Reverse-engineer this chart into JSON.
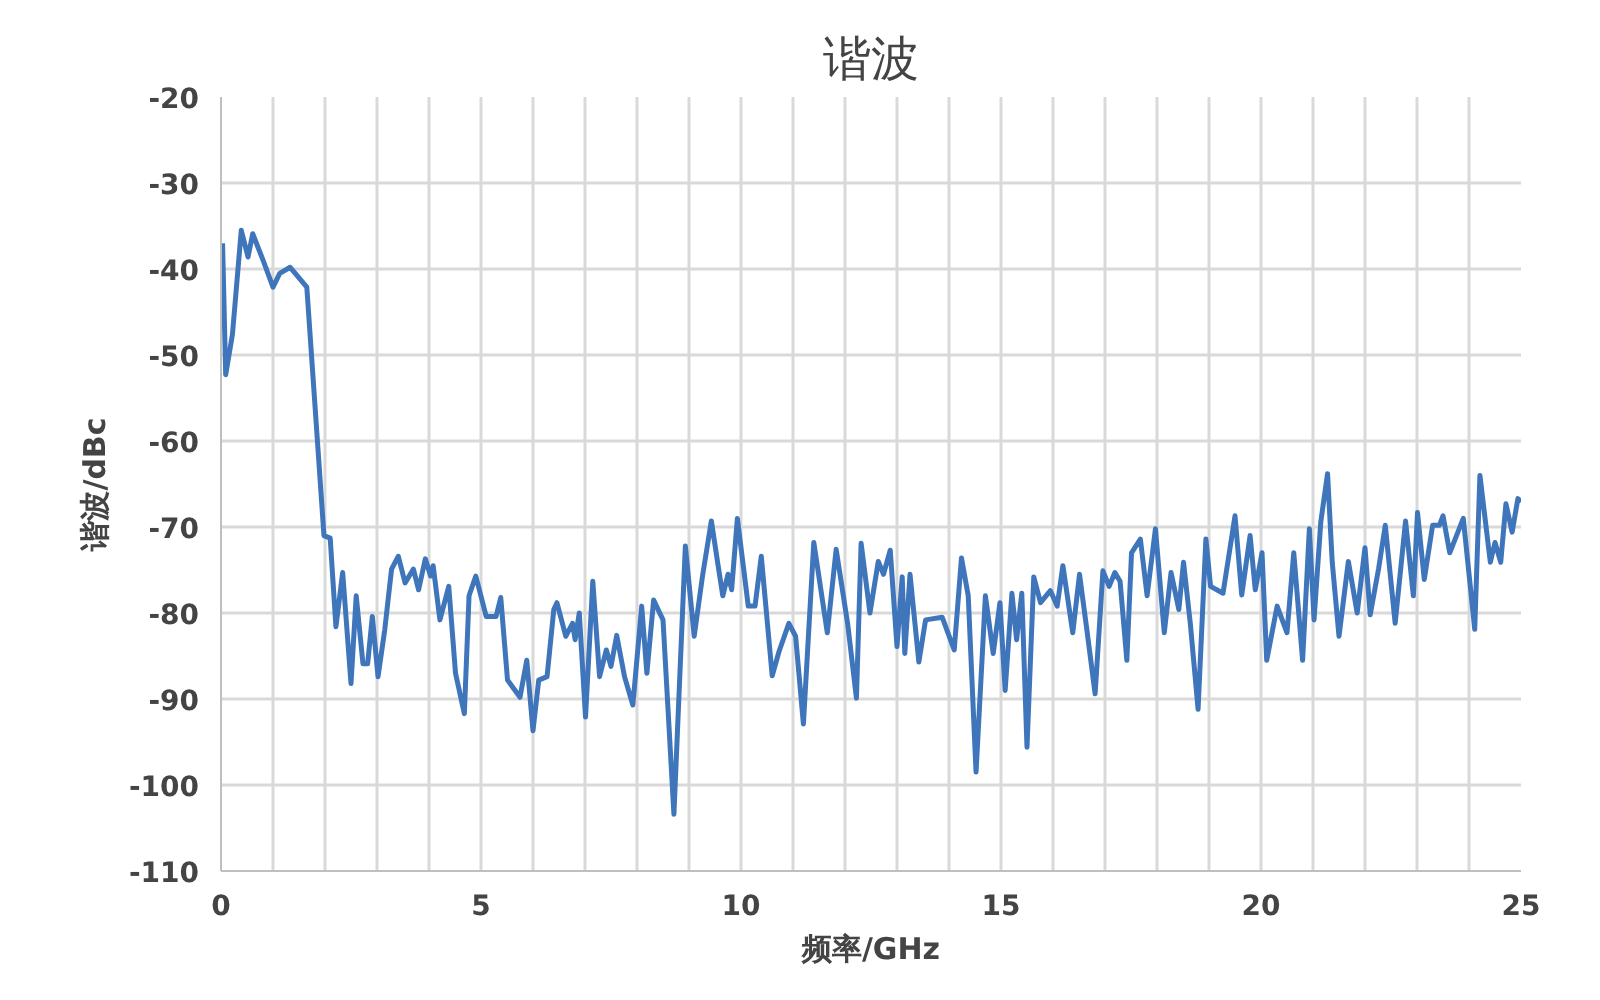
{
  "chart_data": {
    "type": "line",
    "title": "谐波",
    "xlabel": "频率/GHz",
    "ylabel": "谐波/dBc",
    "xlim": [
      0,
      25
    ],
    "ylim": [
      -110,
      -20
    ],
    "xticks": [
      0,
      {
        "value": 1,
        "label": null
      },
      {
        "value": 2,
        "label": null
      },
      {
        "value": 3,
        "label": null
      },
      {
        "value": 4,
        "label": null
      },
      5,
      {
        "value": 6,
        "label": null
      },
      {
        "value": 7,
        "label": null
      },
      {
        "value": 8,
        "label": null
      },
      {
        "value": 9,
        "label": null
      },
      10,
      {
        "value": 11,
        "label": null
      },
      {
        "value": 12,
        "label": null
      },
      {
        "value": 13,
        "label": null
      },
      {
        "value": 14,
        "label": null
      },
      15,
      {
        "value": 16,
        "label": null
      },
      {
        "value": 17,
        "label": null
      },
      {
        "value": 18,
        "label": null
      },
      {
        "value": 19,
        "label": null
      },
      20,
      {
        "value": 21,
        "label": null
      },
      {
        "value": 22,
        "label": null
      },
      {
        "value": 23,
        "label": null
      },
      {
        "value": 24,
        "label": null
      },
      25
    ],
    "yticks": [
      -110,
      -100,
      -90,
      -80,
      -70,
      -60,
      -50,
      -40,
      -30,
      -20
    ],
    "grid": true,
    "marker": "none",
    "line_style": "solid",
    "series": [
      {
        "color": "#3f75bb",
        "x": [
          0.03,
          0.09,
          0.22,
          0.39,
          0.52,
          0.61,
          0.81,
          1.0,
          1.13,
          1.33,
          1.65,
          1.98,
          2.1,
          2.21,
          2.34,
          2.5,
          2.6,
          2.73,
          2.82,
          2.91,
          3.02,
          3.15,
          3.28,
          3.41,
          3.54,
          3.7,
          3.8,
          3.93,
          4.03,
          4.08,
          4.21,
          4.38,
          4.51,
          4.68,
          4.77,
          4.9,
          5.1,
          5.29,
          5.38,
          5.51,
          5.75,
          5.88,
          6.0,
          6.11,
          6.27,
          6.4,
          6.46,
          6.63,
          6.76,
          6.81,
          6.89,
          7.01,
          7.15,
          7.28,
          7.41,
          7.5,
          7.61,
          7.76,
          7.92,
          8.09,
          8.19,
          8.32,
          8.5,
          8.71,
          8.93,
          9.1,
          9.26,
          9.43,
          9.56,
          9.65,
          9.75,
          9.82,
          9.93,
          10.14,
          10.27,
          10.39,
          10.6,
          10.73,
          10.92,
          11.05,
          11.2,
          11.4,
          11.66,
          11.83,
          12.05,
          12.22,
          12.31,
          12.48,
          12.64,
          12.74,
          12.87,
          13.0,
          13.1,
          13.15,
          13.25,
          13.42,
          13.55,
          13.87,
          14.1,
          14.24,
          14.37,
          14.52,
          14.7,
          14.85,
          14.98,
          15.08,
          15.21,
          15.3,
          15.4,
          15.5,
          15.63,
          15.76,
          15.95,
          16.08,
          16.19,
          16.38,
          16.51,
          16.65,
          16.81,
          16.96,
          17.08,
          17.19,
          17.29,
          17.42,
          17.51,
          17.68,
          17.81,
          17.97,
          18.14,
          18.27,
          18.42,
          18.51,
          18.64,
          18.79,
          18.94,
          19.03,
          19.27,
          19.5,
          19.63,
          19.79,
          19.89,
          20.02,
          20.11,
          20.31,
          20.5,
          20.63,
          20.8,
          20.93,
          21.02,
          21.15,
          21.28,
          21.37,
          21.5,
          21.68,
          21.85,
          22.0,
          22.1,
          22.26,
          22.39,
          22.58,
          22.78,
          22.93,
          23.01,
          23.14,
          23.3,
          23.43,
          23.5,
          23.63,
          23.89,
          24.11,
          24.21,
          24.41,
          24.5,
          24.61,
          24.71,
          24.83,
          24.94,
          25.0
        ],
        "values": [
          -37,
          -52.3,
          -47.6,
          -35.5,
          -38.6,
          -35.9,
          -39,
          -42.1,
          -40.5,
          -39.8,
          -42.1,
          -71,
          -71.3,
          -81.6,
          -75.3,
          -88.2,
          -78,
          -85.9,
          -85.9,
          -80.4,
          -87.4,
          -81.9,
          -74.9,
          -73.4,
          -76.5,
          -74.9,
          -77.3,
          -73.7,
          -75.7,
          -74.5,
          -80.8,
          -76.9,
          -87,
          -91.7,
          -78,
          -75.7,
          -80.4,
          -80.4,
          -78.2,
          -87.8,
          -89.8,
          -85.5,
          -93.7,
          -87.8,
          -87.4,
          -79.6,
          -78.8,
          -82.7,
          -81.2,
          -83.1,
          -80,
          -92.1,
          -76.3,
          -87.4,
          -84.3,
          -86.2,
          -82.6,
          -87.4,
          -90.7,
          -79.2,
          -87,
          -78.5,
          -80.8,
          -103.4,
          -72.2,
          -82.7,
          -75.7,
          -69.3,
          -74.5,
          -78,
          -75.5,
          -77.3,
          -69,
          -79.2,
          -79.2,
          -73.4,
          -87.3,
          -84.5,
          -81.2,
          -82.7,
          -92.9,
          -71.8,
          -82.3,
          -72.6,
          -81.2,
          -89.9,
          -71.9,
          -80,
          -74,
          -75.5,
          -72.7,
          -83.9,
          -75.8,
          -84.7,
          -75.5,
          -85.7,
          -80.8,
          -80.5,
          -84.3,
          -73.6,
          -78,
          -98.5,
          -78,
          -84.7,
          -78.8,
          -89,
          -77.7,
          -83.1,
          -77.7,
          -95.6,
          -75.8,
          -78.8,
          -77.4,
          -79.2,
          -74.5,
          -82.3,
          -75.5,
          -81.9,
          -89.4,
          -75.1,
          -76.9,
          -75.3,
          -76.3,
          -85.5,
          -73,
          -71.4,
          -78,
          -70.2,
          -82.3,
          -75.3,
          -79.6,
          -74.1,
          -81.2,
          -91.2,
          -71.4,
          -76.9,
          -77.7,
          -68.7,
          -77.9,
          -71,
          -77.3,
          -73,
          -85.5,
          -79.2,
          -82.3,
          -73,
          -85.5,
          -70.2,
          -80.8,
          -69.4,
          -63.8,
          -74.1,
          -82.7,
          -74,
          -80,
          -72.4,
          -80.2,
          -74.9,
          -69.8,
          -81.2,
          -69.3,
          -78,
          -68.3,
          -76.1,
          -69.8,
          -69.8,
          -68.7,
          -73,
          -69,
          -81.9,
          -64,
          -74.1,
          -71.8,
          -74.1,
          -67.3,
          -70.6,
          -66.7,
          -67.1
        ]
      }
    ]
  }
}
